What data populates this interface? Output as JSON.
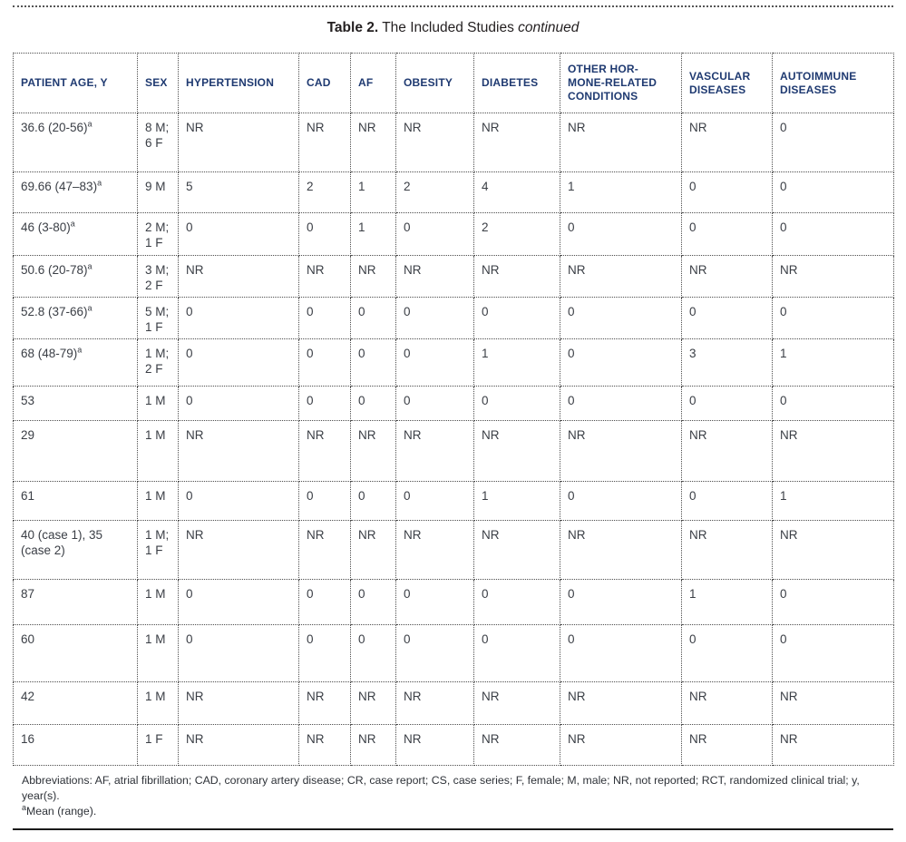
{
  "colors": {
    "header_text": "#1f3a71",
    "body_text": "#3a3e45",
    "title_text": "#231f20",
    "rule": "#1a1a1a"
  },
  "title": {
    "label": "Table 2.",
    "text": " The Included Studies ",
    "continued": "continued"
  },
  "table": {
    "columns": [
      "PATIENT AGE, Y",
      "SEX",
      "HYPERTENSION",
      "CAD",
      "AF",
      "OBESITY",
      "DIABETES",
      "OTHER HOR-MONE-RELATED CONDITIONS",
      "VASCULAR DISEASES",
      "AUTOIMMUNE DISEASES"
    ],
    "rows": [
      {
        "age": "36.6 (20-56)",
        "age_sup": "a",
        "sex": "8 M; 6 F",
        "values": [
          "NR",
          "NR",
          "NR",
          "NR",
          "NR",
          "NR",
          "NR",
          "0"
        ]
      },
      {
        "age": "69.66 (47–83)",
        "age_sup": "a",
        "sex": "9 M",
        "values": [
          "5",
          "2",
          "1",
          "2",
          "4",
          "1",
          "0",
          "0"
        ]
      },
      {
        "age": "46 (3-80)",
        "age_sup": "a",
        "sex": "2 M; 1 F",
        "values": [
          "0",
          "0",
          "1",
          "0",
          "2",
          "0",
          "0",
          "0"
        ]
      },
      {
        "age": "50.6 (20-78)",
        "age_sup": "a",
        "sex": "3 M; 2 F",
        "values": [
          "NR",
          "NR",
          "NR",
          "NR",
          "NR",
          "NR",
          "NR",
          "NR"
        ]
      },
      {
        "age": "52.8 (37-66)",
        "age_sup": "a",
        "sex": "5 M; 1 F",
        "values": [
          "0",
          "0",
          "0",
          "0",
          "0",
          "0",
          "0",
          "0"
        ]
      },
      {
        "age": "68 (48-79)",
        "age_sup": "a",
        "sex": "1 M; 2 F",
        "values": [
          "0",
          "0",
          "0",
          "0",
          "1",
          "0",
          "3",
          "1"
        ]
      },
      {
        "age": "53",
        "age_sup": "",
        "sex": "1 M",
        "values": [
          "0",
          "0",
          "0",
          "0",
          "0",
          "0",
          "0",
          "0"
        ]
      },
      {
        "age": "29",
        "age_sup": "",
        "sex": "1 M",
        "values": [
          "NR",
          "NR",
          "NR",
          "NR",
          "NR",
          "NR",
          "NR",
          "NR"
        ]
      },
      {
        "age": "61",
        "age_sup": "",
        "sex": "1 M",
        "values": [
          "0",
          "0",
          "0",
          "0",
          "1",
          "0",
          "0",
          "1"
        ]
      },
      {
        "age": "40 (case 1), 35 (case 2)",
        "age_sup": "",
        "sex": "1 M; 1 F",
        "values": [
          "NR",
          "NR",
          "NR",
          "NR",
          "NR",
          "NR",
          "NR",
          "NR"
        ]
      },
      {
        "age": "87",
        "age_sup": "",
        "sex": "1 M",
        "values": [
          "0",
          "0",
          "0",
          "0",
          "0",
          "0",
          "1",
          "0"
        ]
      },
      {
        "age": "60",
        "age_sup": "",
        "sex": "1 M",
        "values": [
          "0",
          "0",
          "0",
          "0",
          "0",
          "0",
          "0",
          "0"
        ]
      },
      {
        "age": "42",
        "age_sup": "",
        "sex": "1 M",
        "values": [
          "NR",
          "NR",
          "NR",
          "NR",
          "NR",
          "NR",
          "NR",
          "NR"
        ]
      },
      {
        "age": "16",
        "age_sup": "",
        "sex": "1 F",
        "values": [
          "NR",
          "NR",
          "NR",
          "NR",
          "NR",
          "NR",
          "NR",
          "NR"
        ]
      }
    ]
  },
  "footnote": {
    "abbreviations": "Abbreviations: AF, atrial fibrillation; CAD, coronary artery disease; CR, case report; CS, case series; F, female; M, male; NR, not reported; RCT, randomized clinical trial; y, year(s).",
    "mean_sup": "a",
    "mean_note": "Mean (range)."
  }
}
